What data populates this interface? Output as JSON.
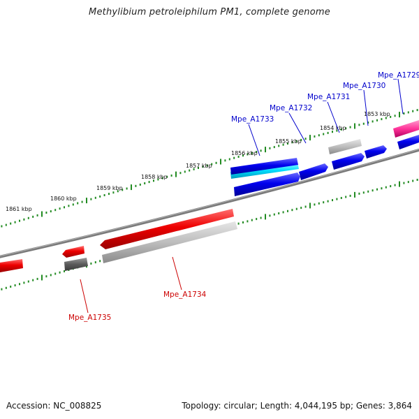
{
  "title": "Methylibium petroleiphilum PM1, complete genome",
  "footer": {
    "accession": "Accession: NC_008825",
    "topology": "Topology: circular; Length: 4,044,195 bp; Genes: 3,864"
  },
  "ticks": [
    "1861 kbp",
    "1860 kbp",
    "1859 kbp",
    "1858 kbp",
    "1857 kbp",
    "1856 kbp",
    "1855 kbp",
    "1854 kbp",
    "1853 kbp"
  ],
  "genes": {
    "forward": [
      "Mpe_A1733",
      "Mpe_A1732",
      "Mpe_A1731",
      "Mpe_A1730",
      "Mpe_A1729"
    ],
    "reverse": [
      "Mpe_A1734",
      "Mpe_A1735"
    ]
  },
  "colors": {
    "forward_gene": "#0000ee",
    "reverse_gene": "#ee0000",
    "pseudo_gene": "#ff3399",
    "rna_highlight": "#00ccff",
    "backbone": "#808080",
    "tick": "#228b22"
  }
}
